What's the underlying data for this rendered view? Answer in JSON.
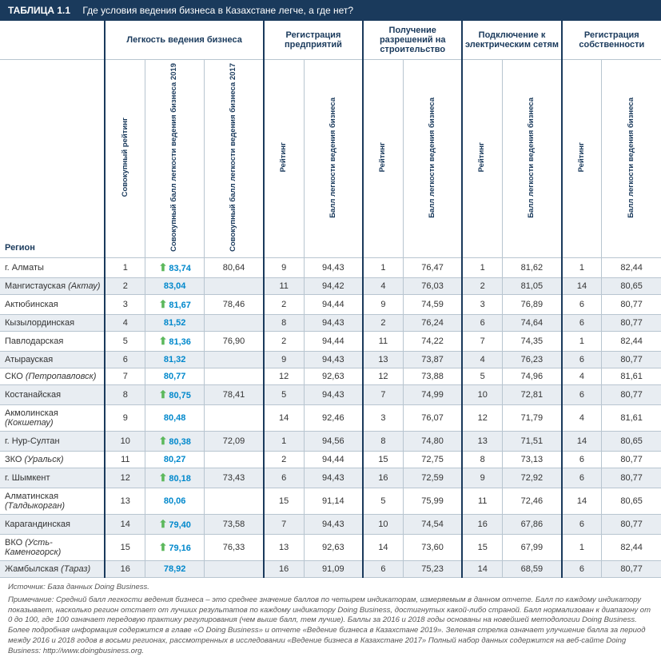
{
  "title": {
    "num": "ТАБЛИЦА 1.1",
    "text": "Где условия ведения бизнеса в Казахстане легче, а где нет?"
  },
  "groupHeaders": [
    "",
    "Легкость ведения бизнеса",
    "Регистрация предприятий",
    "Получение разрешений на строительство",
    "Подключение к электрическим сетям",
    "Регистрация собственности"
  ],
  "subHeaders": {
    "region": "Регион",
    "ease": [
      "Совокупный рейтинг",
      "Совокупный балл легкости ведения бизнеса 2019",
      "Совокупный балл легкости ведения бизнеса 2017"
    ],
    "pair": [
      "Рейтинг",
      "Балл легкости ведения бизнеса"
    ]
  },
  "rows": [
    {
      "region": "г. Алматы",
      "rank": 1,
      "arrow": true,
      "s19": "83,74",
      "s17": "80,64",
      "c": [
        [
          "9",
          "94,43"
        ],
        [
          "1",
          "76,47"
        ],
        [
          "1",
          "81,62"
        ],
        [
          "1",
          "82,44"
        ]
      ]
    },
    {
      "region": "Мангистауская <i>(Актау)</i>",
      "rank": 2,
      "arrow": false,
      "s19": "83,04",
      "s17": "",
      "c": [
        [
          "11",
          "94,42"
        ],
        [
          "4",
          "76,03"
        ],
        [
          "2",
          "81,05"
        ],
        [
          "14",
          "80,65"
        ]
      ]
    },
    {
      "region": "Актюбинская",
      "rank": 3,
      "arrow": true,
      "s19": "81,67",
      "s17": "78,46",
      "c": [
        [
          "2",
          "94,44"
        ],
        [
          "9",
          "74,59"
        ],
        [
          "3",
          "76,89"
        ],
        [
          "6",
          "80,77"
        ]
      ]
    },
    {
      "region": "Кызылординская",
      "rank": 4,
      "arrow": false,
      "s19": "81,52",
      "s17": "",
      "c": [
        [
          "8",
          "94,43"
        ],
        [
          "2",
          "76,24"
        ],
        [
          "6",
          "74,64"
        ],
        [
          "6",
          "80,77"
        ]
      ]
    },
    {
      "region": "Павлодарская",
      "rank": 5,
      "arrow": true,
      "s19": "81,36",
      "s17": "76,90",
      "c": [
        [
          "2",
          "94,44"
        ],
        [
          "11",
          "74,22"
        ],
        [
          "7",
          "74,35"
        ],
        [
          "1",
          "82,44"
        ]
      ]
    },
    {
      "region": "Атырауская",
      "rank": 6,
      "arrow": false,
      "s19": "81,32",
      "s17": "",
      "c": [
        [
          "9",
          "94,43"
        ],
        [
          "13",
          "73,87"
        ],
        [
          "4",
          "76,23"
        ],
        [
          "6",
          "80,77"
        ]
      ]
    },
    {
      "region": "СКО <i>(Петропавловск)</i>",
      "rank": 7,
      "arrow": false,
      "s19": "80,77",
      "s17": "",
      "c": [
        [
          "12",
          "92,63"
        ],
        [
          "12",
          "73,88"
        ],
        [
          "5",
          "74,96"
        ],
        [
          "4",
          "81,61"
        ]
      ]
    },
    {
      "region": "Костанайская",
      "rank": 8,
      "arrow": true,
      "s19": "80,75",
      "s17": "78,41",
      "c": [
        [
          "5",
          "94,43"
        ],
        [
          "7",
          "74,99"
        ],
        [
          "10",
          "72,81"
        ],
        [
          "6",
          "80,77"
        ]
      ]
    },
    {
      "region": "Акмолинская <i>(Кокшетау)</i>",
      "rank": 9,
      "arrow": false,
      "s19": "80,48",
      "s17": "",
      "c": [
        [
          "14",
          "92,46"
        ],
        [
          "3",
          "76,07"
        ],
        [
          "12",
          "71,79"
        ],
        [
          "4",
          "81,61"
        ]
      ]
    },
    {
      "region": "г. Нур-Султан",
      "rank": 10,
      "arrow": true,
      "s19": "80,38",
      "s17": "72,09",
      "c": [
        [
          "1",
          "94,56"
        ],
        [
          "8",
          "74,80"
        ],
        [
          "13",
          "71,51"
        ],
        [
          "14",
          "80,65"
        ]
      ]
    },
    {
      "region": "ЗКО <i>(Уральск)</i>",
      "rank": 11,
      "arrow": false,
      "s19": "80,27",
      "s17": "",
      "c": [
        [
          "2",
          "94,44"
        ],
        [
          "15",
          "72,75"
        ],
        [
          "8",
          "73,13"
        ],
        [
          "6",
          "80,77"
        ]
      ]
    },
    {
      "region": "г. Шымкент",
      "rank": 12,
      "arrow": true,
      "s19": "80,18",
      "s17": "73,43",
      "c": [
        [
          "6",
          "94,43"
        ],
        [
          "16",
          "72,59"
        ],
        [
          "9",
          "72,92"
        ],
        [
          "6",
          "80,77"
        ]
      ]
    },
    {
      "region": "Алматинская <i>(Талдыкорган)</i>",
      "rank": 13,
      "arrow": false,
      "s19": "80,06",
      "s17": "",
      "c": [
        [
          "15",
          "91,14"
        ],
        [
          "5",
          "75,99"
        ],
        [
          "11",
          "72,46"
        ],
        [
          "14",
          "80,65"
        ]
      ]
    },
    {
      "region": "Карагандинская",
      "rank": 14,
      "arrow": true,
      "s19": "79,40",
      "s17": "73,58",
      "c": [
        [
          "7",
          "94,43"
        ],
        [
          "10",
          "74,54"
        ],
        [
          "16",
          "67,86"
        ],
        [
          "6",
          "80,77"
        ]
      ]
    },
    {
      "region": "ВКО <i>(Усть-Каменогорск)</i>",
      "rank": 15,
      "arrow": true,
      "s19": "79,16",
      "s17": "76,33",
      "c": [
        [
          "13",
          "92,63"
        ],
        [
          "14",
          "73,60"
        ],
        [
          "15",
          "67,99"
        ],
        [
          "1",
          "82,44"
        ]
      ]
    },
    {
      "region": "Жамбылская <i>(Тараз)</i>",
      "rank": 16,
      "arrow": false,
      "s19": "78,92",
      "s17": "",
      "c": [
        [
          "16",
          "91,09"
        ],
        [
          "6",
          "75,23"
        ],
        [
          "14",
          "68,59"
        ],
        [
          "6",
          "80,77"
        ]
      ]
    }
  ],
  "footer": {
    "source": "Источник: База данных Doing Business.",
    "note": "Примечание: Средний балл легкости ведения бизнеса – это среднее значение баллов по четырем индикаторам, измеряемым в данном отчете. Балл по каждому индикатору показывает, насколько регион отстает от лучших результатов по каждому индикатору Doing Business, достигнутых какой-либо страной. Балл нормализован к диапазону от 0 до 100, где 100 означает передовую практику регулирования (чем выше балл, тем лучше). Баллы за 2016 и 2018 годы основаны на новейшей методологии Doing Business. Более подробная информация содержится в главе «О Doing Business» и отчете «Ведение бизнеса в Казахстане 2019». Зеленая стрелка означает улучшение балла за период между 2016 и 2018 годов в восьми регионах, рассмотренных в исследовании «Ведение бизнеса в Казахстане 2017» Полный набор данных содержится на веб-сайте Doing Business: http://www.doingbusiness.org."
  }
}
